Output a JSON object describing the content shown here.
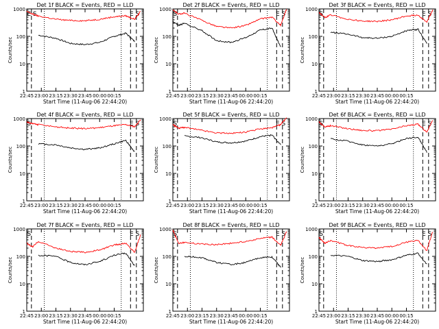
{
  "figure": {
    "xlabel": "Start Time (11-Aug-06 22:44:20)",
    "ylabel": "Counts/sec"
  },
  "chart_data": [
    {
      "type": "line",
      "title": "Det 1f BLACK = Events, RED = LLD",
      "x_ticks": [
        "22:45",
        "23:00",
        "23:15",
        "23:30",
        "23:45",
        "00:00",
        "00:15"
      ],
      "y_ticks": [
        "1",
        "10",
        "100",
        "1000"
      ],
      "ylim": [
        1,
        1000
      ],
      "yscale": "log",
      "markers": [
        "E",
        "S",
        "E",
        "S"
      ],
      "series": [
        {
          "name": "Events",
          "color": "#000000",
          "x": [
            0.2,
            0.5,
            0.75,
            1.0,
            1.25,
            1.5,
            1.7,
            1.85
          ],
          "values": [
            110,
            85,
            55,
            50,
            60,
            100,
            130,
            65
          ]
        },
        {
          "name": "LLD",
          "color": "#ff0000",
          "x": [
            0,
            0.1,
            0.2,
            0.5,
            0.75,
            1.0,
            1.25,
            1.5,
            1.7,
            1.85,
            1.95
          ],
          "values": [
            800,
            650,
            550,
            420,
            380,
            370,
            420,
            520,
            560,
            420,
            800
          ]
        }
      ]
    },
    {
      "type": "line",
      "title": "Det 2f BLACK = Events, RED = LLD",
      "x_ticks": [
        "22:45",
        "23:00",
        "23:15",
        "23:30",
        "23:45",
        "00:00",
        "00:15"
      ],
      "y_ticks": [
        "1",
        "10",
        "100",
        "1000"
      ],
      "ylim": [
        1,
        1000
      ],
      "yscale": "log",
      "markers": [
        "S",
        "E",
        "S"
      ],
      "series": [
        {
          "name": "Events",
          "color": "#000000",
          "x": [
            0,
            0.1,
            0.2,
            0.5,
            0.75,
            1.0,
            1.25,
            1.5,
            1.7,
            1.85
          ],
          "values": [
            350,
            250,
            300,
            160,
            70,
            60,
            90,
            170,
            200,
            40
          ]
        },
        {
          "name": "LLD",
          "color": "#ff0000",
          "x": [
            0,
            0.1,
            0.2,
            0.5,
            0.75,
            1.0,
            1.25,
            1.5,
            1.7,
            1.85,
            1.95
          ],
          "values": [
            900,
            650,
            700,
            380,
            230,
            200,
            250,
            430,
            500,
            250,
            1000
          ]
        }
      ]
    },
    {
      "type": "line",
      "title": "Det 3f BLACK = Events, RED = LLD",
      "x_ticks": [
        "22:45",
        "23:00",
        "23:15",
        "23:30",
        "23:45",
        "00:00",
        "00:15"
      ],
      "y_ticks": [
        "1",
        "10",
        "100",
        "1000"
      ],
      "ylim": [
        1,
        1000
      ],
      "yscale": "log",
      "markers": [
        "S",
        "E",
        "S"
      ],
      "series": [
        {
          "name": "Events",
          "color": "#000000",
          "x": [
            0.2,
            0.5,
            0.75,
            1.0,
            1.25,
            1.5,
            1.7,
            1.85
          ],
          "values": [
            140,
            120,
            90,
            85,
            100,
            160,
            180,
            55
          ]
        },
        {
          "name": "LLD",
          "color": "#ff0000",
          "x": [
            0,
            0.1,
            0.2,
            0.5,
            0.75,
            1.0,
            1.25,
            1.5,
            1.7,
            1.85,
            1.95
          ],
          "values": [
            750,
            480,
            600,
            420,
            360,
            350,
            400,
            550,
            600,
            330,
            900
          ]
        }
      ]
    },
    {
      "type": "line",
      "title": "Det 4f BLACK = Events, RED = LLD",
      "x_ticks": [
        "22:45",
        "23:00",
        "23:15",
        "23:30",
        "23:45",
        "00:00",
        "00:15"
      ],
      "y_ticks": [
        "1",
        "10",
        "100",
        "1000"
      ],
      "ylim": [
        1,
        1000
      ],
      "yscale": "log",
      "markers": [
        "S",
        "E",
        "S"
      ],
      "series": [
        {
          "name": "Events",
          "color": "#000000",
          "x": [
            0.2,
            0.5,
            0.75,
            1.0,
            1.25,
            1.5,
            1.7,
            1.85
          ],
          "values": [
            120,
            110,
            85,
            75,
            85,
            120,
            160,
            60
          ]
        },
        {
          "name": "LLD",
          "color": "#ff0000",
          "x": [
            0,
            0.1,
            0.2,
            0.5,
            0.75,
            1.0,
            1.25,
            1.5,
            1.7,
            1.85,
            1.95
          ],
          "values": [
            750,
            650,
            600,
            500,
            450,
            430,
            470,
            550,
            600,
            500,
            900
          ]
        }
      ]
    },
    {
      "type": "line",
      "title": "Det 5f BLACK = Events, RED = LLD",
      "x_ticks": [
        "22:45",
        "23:00",
        "23:15",
        "23:30",
        "23:45",
        "00:00",
        "00:15"
      ],
      "y_ticks": [
        "1",
        "10",
        "100",
        "1000"
      ],
      "ylim": [
        1,
        1000
      ],
      "yscale": "log",
      "markers": [
        "S",
        "E",
        "S"
      ],
      "series": [
        {
          "name": "Events",
          "color": "#000000",
          "x": [
            0.2,
            0.5,
            0.75,
            1.0,
            1.25,
            1.5,
            1.7,
            1.85
          ],
          "values": [
            230,
            200,
            140,
            130,
            150,
            220,
            250,
            110
          ]
        },
        {
          "name": "LLD",
          "color": "#ff0000",
          "x": [
            0,
            0.1,
            0.2,
            0.5,
            0.75,
            1.0,
            1.25,
            1.5,
            1.7,
            1.85,
            1.95
          ],
          "values": [
            600,
            450,
            480,
            370,
            300,
            290,
            320,
            420,
            460,
            600,
            1100
          ]
        }
      ]
    },
    {
      "type": "line",
      "title": "Det 6f BLACK = Events, RED = LLD",
      "x_ticks": [
        "22:45",
        "23:00",
        "23:15",
        "23:30",
        "23:45",
        "00:00",
        "00:15"
      ],
      "y_ticks": [
        "1",
        "10",
        "100",
        "1000"
      ],
      "ylim": [
        1,
        1000
      ],
      "yscale": "log",
      "markers": [
        "S",
        "E",
        "S"
      ],
      "series": [
        {
          "name": "Events",
          "color": "#000000",
          "x": [
            0.2,
            0.5,
            0.75,
            1.0,
            1.25,
            1.5,
            1.7,
            1.85
          ],
          "values": [
            180,
            150,
            110,
            100,
            120,
            190,
            210,
            60
          ]
        },
        {
          "name": "LLD",
          "color": "#ff0000",
          "x": [
            0,
            0.1,
            0.2,
            0.5,
            0.75,
            1.0,
            1.25,
            1.5,
            1.7,
            1.85,
            1.95
          ],
          "values": [
            750,
            500,
            550,
            430,
            370,
            360,
            410,
            550,
            620,
            320,
            900
          ]
        }
      ]
    },
    {
      "type": "line",
      "title": "Det 7f BLACK = Events, RED = LLD",
      "x_ticks": [
        "22:45",
        "23:00",
        "23:15",
        "23:30",
        "23:45",
        "00:00",
        "00:15"
      ],
      "y_ticks": [
        "1",
        "10",
        "100",
        "1000"
      ],
      "ylim": [
        1,
        1000
      ],
      "yscale": "log",
      "markers": [
        "S",
        "E",
        "S"
      ],
      "series": [
        {
          "name": "Events",
          "color": "#000000",
          "x": [
            0.2,
            0.5,
            0.75,
            1.0,
            1.25,
            1.5,
            1.7,
            1.85
          ],
          "values": [
            110,
            100,
            60,
            50,
            65,
            110,
            130,
            45
          ]
        },
        {
          "name": "LLD",
          "color": "#ff0000",
          "x": [
            0,
            0.1,
            0.2,
            0.5,
            0.75,
            1.0,
            1.25,
            1.5,
            1.7,
            1.85,
            1.95
          ],
          "values": [
            300,
            220,
            350,
            200,
            150,
            140,
            170,
            260,
            300,
            140,
            600
          ]
        }
      ]
    },
    {
      "type": "line",
      "title": "Det 8f BLACK = Events, RED = LLD",
      "x_ticks": [
        "22:45",
        "23:00",
        "23:15",
        "23:30",
        "23:45",
        "00:00",
        "00:15"
      ],
      "y_ticks": [
        "1",
        "10",
        "100",
        "1000"
      ],
      "ylim": [
        1,
        1000
      ],
      "yscale": "log",
      "markers": [
        "S",
        "E",
        "S"
      ],
      "series": [
        {
          "name": "Events",
          "color": "#000000",
          "x": [
            0.2,
            0.5,
            0.75,
            1.0,
            1.25,
            1.5,
            1.7,
            1.85
          ],
          "values": [
            100,
            90,
            60,
            50,
            60,
            90,
            95,
            40
          ]
        },
        {
          "name": "LLD",
          "color": "#ff0000",
          "x": [
            0,
            0.1,
            0.2,
            0.5,
            0.75,
            1.0,
            1.25,
            1.5,
            1.7,
            1.85,
            1.95
          ],
          "values": [
            900,
            300,
            320,
            280,
            270,
            300,
            350,
            450,
            500,
            250,
            800
          ]
        }
      ]
    },
    {
      "type": "line",
      "title": "Det 9f BLACK = Events, RED = LLD",
      "x_ticks": [
        "22:45",
        "23:00",
        "23:15",
        "23:30",
        "23:45",
        "00:00",
        "00:15"
      ],
      "y_ticks": [
        "1",
        "10",
        "100",
        "1000"
      ],
      "ylim": [
        1,
        1000
      ],
      "yscale": "log",
      "markers": [
        "S",
        "E",
        "S"
      ],
      "series": [
        {
          "name": "Events",
          "color": "#000000",
          "x": [
            0.2,
            0.5,
            0.75,
            1.0,
            1.25,
            1.5,
            1.7,
            1.85
          ],
          "values": [
            110,
            100,
            70,
            65,
            75,
            110,
            130,
            50
          ]
        },
        {
          "name": "LLD",
          "color": "#ff0000",
          "x": [
            0,
            0.1,
            0.2,
            0.5,
            0.75,
            1.0,
            1.25,
            1.5,
            1.7,
            1.85,
            1.95
          ],
          "values": [
            500,
            300,
            380,
            250,
            210,
            200,
            230,
            330,
            380,
            160,
            800
          ]
        }
      ]
    }
  ]
}
